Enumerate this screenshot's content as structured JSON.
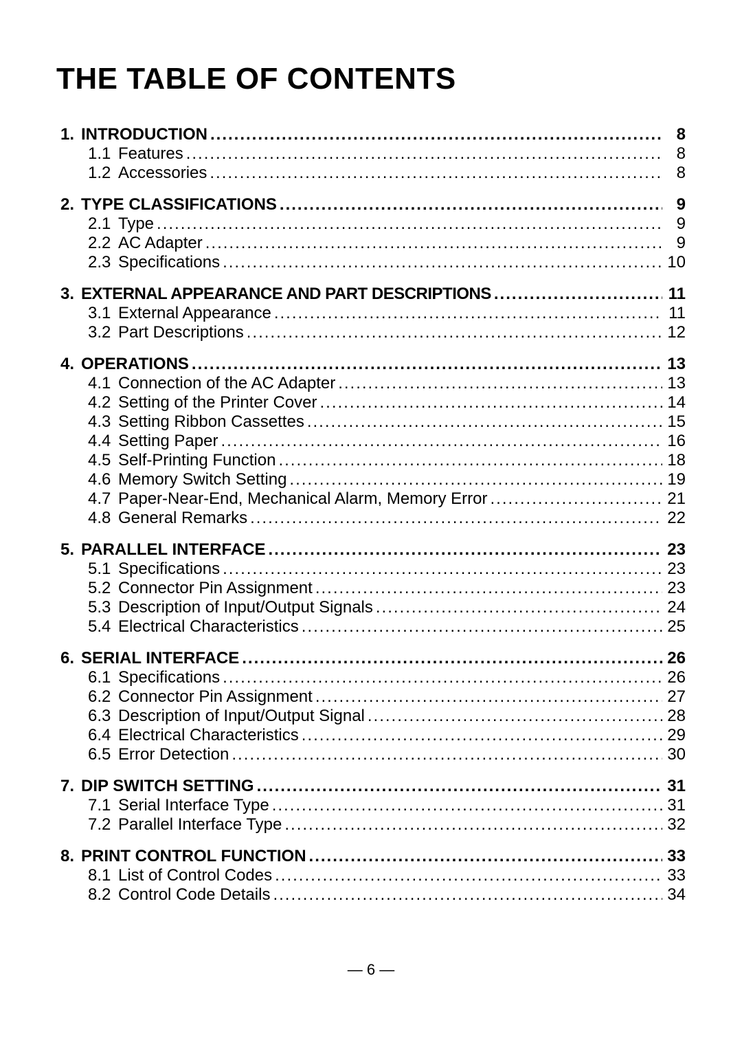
{
  "title": "THE TABLE OF CONTENTS",
  "dots": "...........................................................................................................................................",
  "page_number": "— 6 —",
  "sections": [
    {
      "num": "1.",
      "title": "INTRODUCTION",
      "page": "8",
      "subs": [
        {
          "num": "1.1",
          "title": "Features",
          "page": "8"
        },
        {
          "num": "1.2",
          "title": "Accessories",
          "page": "8"
        }
      ]
    },
    {
      "num": "2.",
      "title": "TYPE CLASSIFICATIONS",
      "page": "9",
      "subs": [
        {
          "num": "2.1",
          "title": "Type",
          "page": "9"
        },
        {
          "num": "2.2",
          "title": "AC Adapter",
          "page": "9"
        },
        {
          "num": "2.3",
          "title": "Specifications",
          "page": "10"
        }
      ]
    },
    {
      "num": "3.",
      "title": "EXTERNAL APPEARANCE AND PART DESCRIPTIONS",
      "page": "11",
      "tight": true,
      "subs": [
        {
          "num": "3.1",
          "title": "External Appearance",
          "page": "11"
        },
        {
          "num": "3.2",
          "title": "Part Descriptions",
          "page": "12"
        }
      ]
    },
    {
      "num": "4.",
      "title": "OPERATIONS",
      "page": "13",
      "subs": [
        {
          "num": "4.1",
          "title": "Connection of the AC Adapter",
          "page": "13"
        },
        {
          "num": "4.2",
          "title": "Setting of the Printer Cover",
          "page": "14"
        },
        {
          "num": "4.3",
          "title": "Setting Ribbon Cassettes",
          "page": "15"
        },
        {
          "num": "4.4",
          "title": "Setting Paper",
          "page": "16"
        },
        {
          "num": "4.5",
          "title": "Self-Printing Function",
          "page": "18"
        },
        {
          "num": "4.6",
          "title": "Memory Switch Setting",
          "page": "19"
        },
        {
          "num": "4.7",
          "title": "Paper-Near-End, Mechanical Alarm, Memory Error",
          "page": "21"
        },
        {
          "num": "4.8",
          "title": "General Remarks",
          "page": "22"
        }
      ]
    },
    {
      "num": "5.",
      "title": "PARALLEL INTERFACE",
      "page": "23",
      "subs": [
        {
          "num": "5.1",
          "title": "Specifications",
          "page": "23"
        },
        {
          "num": "5.2",
          "title": "Connector Pin Assignment",
          "page": "23"
        },
        {
          "num": "5.3",
          "title": "Description of Input/Output Signals",
          "page": "24"
        },
        {
          "num": "5.4",
          "title": "Electrical Characteristics",
          "page": "25"
        }
      ]
    },
    {
      "num": "6.",
      "title": "SERIAL INTERFACE",
      "page": "26",
      "subs": [
        {
          "num": "6.1",
          "title": "Specifications",
          "page": "26"
        },
        {
          "num": "6.2",
          "title": "Connector Pin Assignment",
          "page": "27"
        },
        {
          "num": "6.3",
          "title": "Description of Input/Output Signal",
          "page": "28"
        },
        {
          "num": "6.4",
          "title": "Electrical Characteristics",
          "page": "29"
        },
        {
          "num": "6.5",
          "title": "Error Detection",
          "page": "30"
        }
      ]
    },
    {
      "num": "7.",
      "title": "DIP SWITCH SETTING",
      "page": "31",
      "subs": [
        {
          "num": "7.1",
          "title": "Serial Interface Type",
          "page": "31"
        },
        {
          "num": "7.2",
          "title": "Parallel Interface Type",
          "page": "32"
        }
      ]
    },
    {
      "num": "8.",
      "title": "PRINT CONTROL FUNCTION",
      "page": "33",
      "subs": [
        {
          "num": "8.1",
          "title": "List of Control Codes",
          "page": "33"
        },
        {
          "num": "8.2",
          "title": "Control Code Details",
          "page": "34"
        }
      ]
    }
  ]
}
